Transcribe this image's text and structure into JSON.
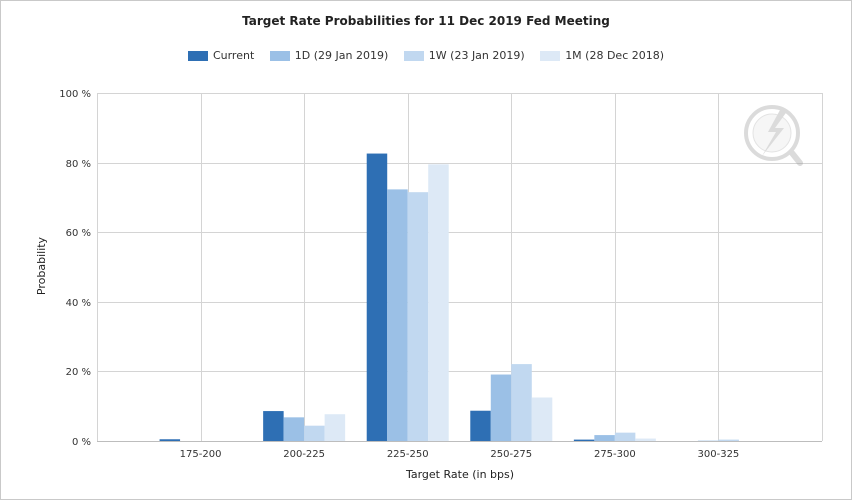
{
  "chart_data": {
    "type": "bar",
    "title": "Target Rate Probabilities for 11 Dec 2019 Fed Meeting",
    "xlabel": "Target Rate (in bps)",
    "ylabel": "Probability",
    "categories": [
      "175-200",
      "200-225",
      "225-250",
      "250-275",
      "275-300",
      "300-325"
    ],
    "ylim": [
      0,
      100
    ],
    "yticks": [
      "0 %",
      "20 %",
      "40 %",
      "60 %",
      "80 %",
      "100 %"
    ],
    "grid": true,
    "legend_position": "top-center",
    "series": [
      {
        "name": "Current",
        "color": "#2e6fb4",
        "values": [
          0.5,
          8.6,
          82.6,
          8.7,
          0.4,
          0.0
        ]
      },
      {
        "name": "1D (29 Jan 2019)",
        "color": "#9bc0e6",
        "values": [
          0.0,
          6.8,
          72.3,
          19.1,
          1.7,
          0.1
        ]
      },
      {
        "name": "1W (23 Jan 2019)",
        "color": "#c1d8f0",
        "values": [
          0.0,
          4.4,
          71.5,
          22.1,
          2.4,
          0.4
        ]
      },
      {
        "name": "1M (28 Dec 2018)",
        "color": "#dde9f6",
        "values": [
          0.0,
          7.7,
          79.5,
          12.5,
          0.7,
          0.0
        ]
      }
    ]
  }
}
